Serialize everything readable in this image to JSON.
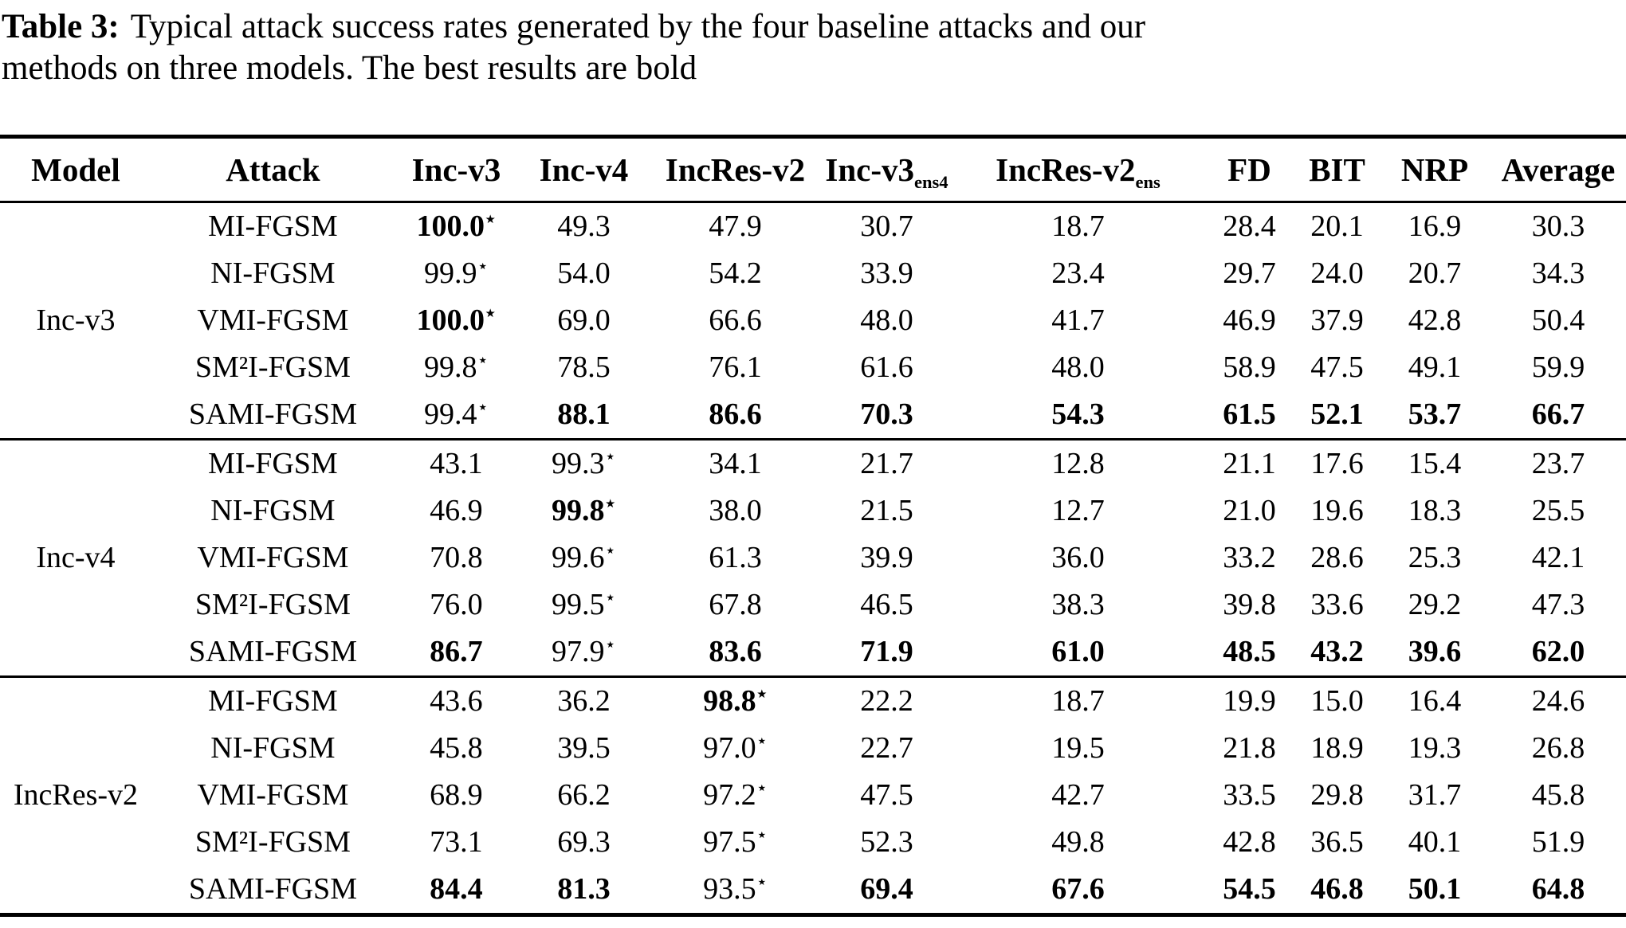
{
  "caption": {
    "label": "Table 3:",
    "text": "Typical attack success rates generated by the four baseline attacks and our methods on three models. The best results are bold"
  },
  "star_marker": "⋆",
  "table": {
    "columns": [
      {
        "label": "Model",
        "sub": ""
      },
      {
        "label": "Attack",
        "sub": ""
      },
      {
        "label": "Inc-v3",
        "sub": ""
      },
      {
        "label": "Inc-v4",
        "sub": ""
      },
      {
        "label": "IncRes-v2",
        "sub": ""
      },
      {
        "label": "Inc-v3",
        "sub": "ens4"
      },
      {
        "label": "IncRes-v2",
        "sub": "ens"
      },
      {
        "label": "FD",
        "sub": ""
      },
      {
        "label": "BIT",
        "sub": ""
      },
      {
        "label": "NRP",
        "sub": ""
      },
      {
        "label": "Average",
        "sub": ""
      }
    ],
    "blocks": [
      {
        "model": "Inc-v3",
        "star_col": 0,
        "rows": [
          {
            "attack": "MI-FGSM",
            "values": [
              "100.0",
              "49.3",
              "47.9",
              "30.7",
              "18.7",
              "28.4",
              "20.1",
              "16.9",
              "30.3"
            ],
            "bold": [
              0
            ]
          },
          {
            "attack": "NI-FGSM",
            "values": [
              "99.9",
              "54.0",
              "54.2",
              "33.9",
              "23.4",
              "29.7",
              "24.0",
              "20.7",
              "34.3"
            ],
            "bold": []
          },
          {
            "attack": "VMI-FGSM",
            "values": [
              "100.0",
              "69.0",
              "66.6",
              "48.0",
              "41.7",
              "46.9",
              "37.9",
              "42.8",
              "50.4"
            ],
            "bold": [
              0
            ]
          },
          {
            "attack": "SM²I-FGSM",
            "values": [
              "99.8",
              "78.5",
              "76.1",
              "61.6",
              "48.0",
              "58.9",
              "47.5",
              "49.1",
              "59.9"
            ],
            "bold": []
          },
          {
            "attack": "SAMI-FGSM",
            "values": [
              "99.4",
              "88.1",
              "86.6",
              "70.3",
              "54.3",
              "61.5",
              "52.1",
              "53.7",
              "66.7"
            ],
            "bold": [
              1,
              2,
              3,
              4,
              5,
              6,
              7,
              8
            ]
          }
        ]
      },
      {
        "model": "Inc-v4",
        "star_col": 1,
        "rows": [
          {
            "attack": "MI-FGSM",
            "values": [
              "43.1",
              "99.3",
              "34.1",
              "21.7",
              "12.8",
              "21.1",
              "17.6",
              "15.4",
              "23.7"
            ],
            "bold": []
          },
          {
            "attack": "NI-FGSM",
            "values": [
              "46.9",
              "99.8",
              "38.0",
              "21.5",
              "12.7",
              "21.0",
              "19.6",
              "18.3",
              "25.5"
            ],
            "bold": [
              1
            ]
          },
          {
            "attack": "VMI-FGSM",
            "values": [
              "70.8",
              "99.6",
              "61.3",
              "39.9",
              "36.0",
              "33.2",
              "28.6",
              "25.3",
              "42.1"
            ],
            "bold": []
          },
          {
            "attack": "SM²I-FGSM",
            "values": [
              "76.0",
              "99.5",
              "67.8",
              "46.5",
              "38.3",
              "39.8",
              "33.6",
              "29.2",
              "47.3"
            ],
            "bold": []
          },
          {
            "attack": "SAMI-FGSM",
            "values": [
              "86.7",
              "97.9",
              "83.6",
              "71.9",
              "61.0",
              "48.5",
              "43.2",
              "39.6",
              "62.0"
            ],
            "bold": [
              0,
              2,
              3,
              4,
              5,
              6,
              7,
              8
            ]
          }
        ]
      },
      {
        "model": "IncRes-v2",
        "star_col": 2,
        "rows": [
          {
            "attack": "MI-FGSM",
            "values": [
              "43.6",
              "36.2",
              "98.8",
              "22.2",
              "18.7",
              "19.9",
              "15.0",
              "16.4",
              "24.6"
            ],
            "bold": [
              2
            ]
          },
          {
            "attack": "NI-FGSM",
            "values": [
              "45.8",
              "39.5",
              "97.0",
              "22.7",
              "19.5",
              "21.8",
              "18.9",
              "19.3",
              "26.8"
            ],
            "bold": []
          },
          {
            "attack": "VMI-FGSM",
            "values": [
              "68.9",
              "66.2",
              "97.2",
              "47.5",
              "42.7",
              "33.5",
              "29.8",
              "31.7",
              "45.8"
            ],
            "bold": []
          },
          {
            "attack": "SM²I-FGSM",
            "values": [
              "73.1",
              "69.3",
              "97.5",
              "52.3",
              "49.8",
              "42.8",
              "36.5",
              "40.1",
              "51.9"
            ],
            "bold": []
          },
          {
            "attack": "SAMI-FGSM",
            "values": [
              "84.4",
              "81.3",
              "93.5",
              "69.4",
              "67.6",
              "54.5",
              "46.8",
              "50.1",
              "64.8"
            ],
            "bold": [
              0,
              1,
              3,
              4,
              5,
              6,
              7,
              8
            ]
          }
        ]
      }
    ]
  }
}
